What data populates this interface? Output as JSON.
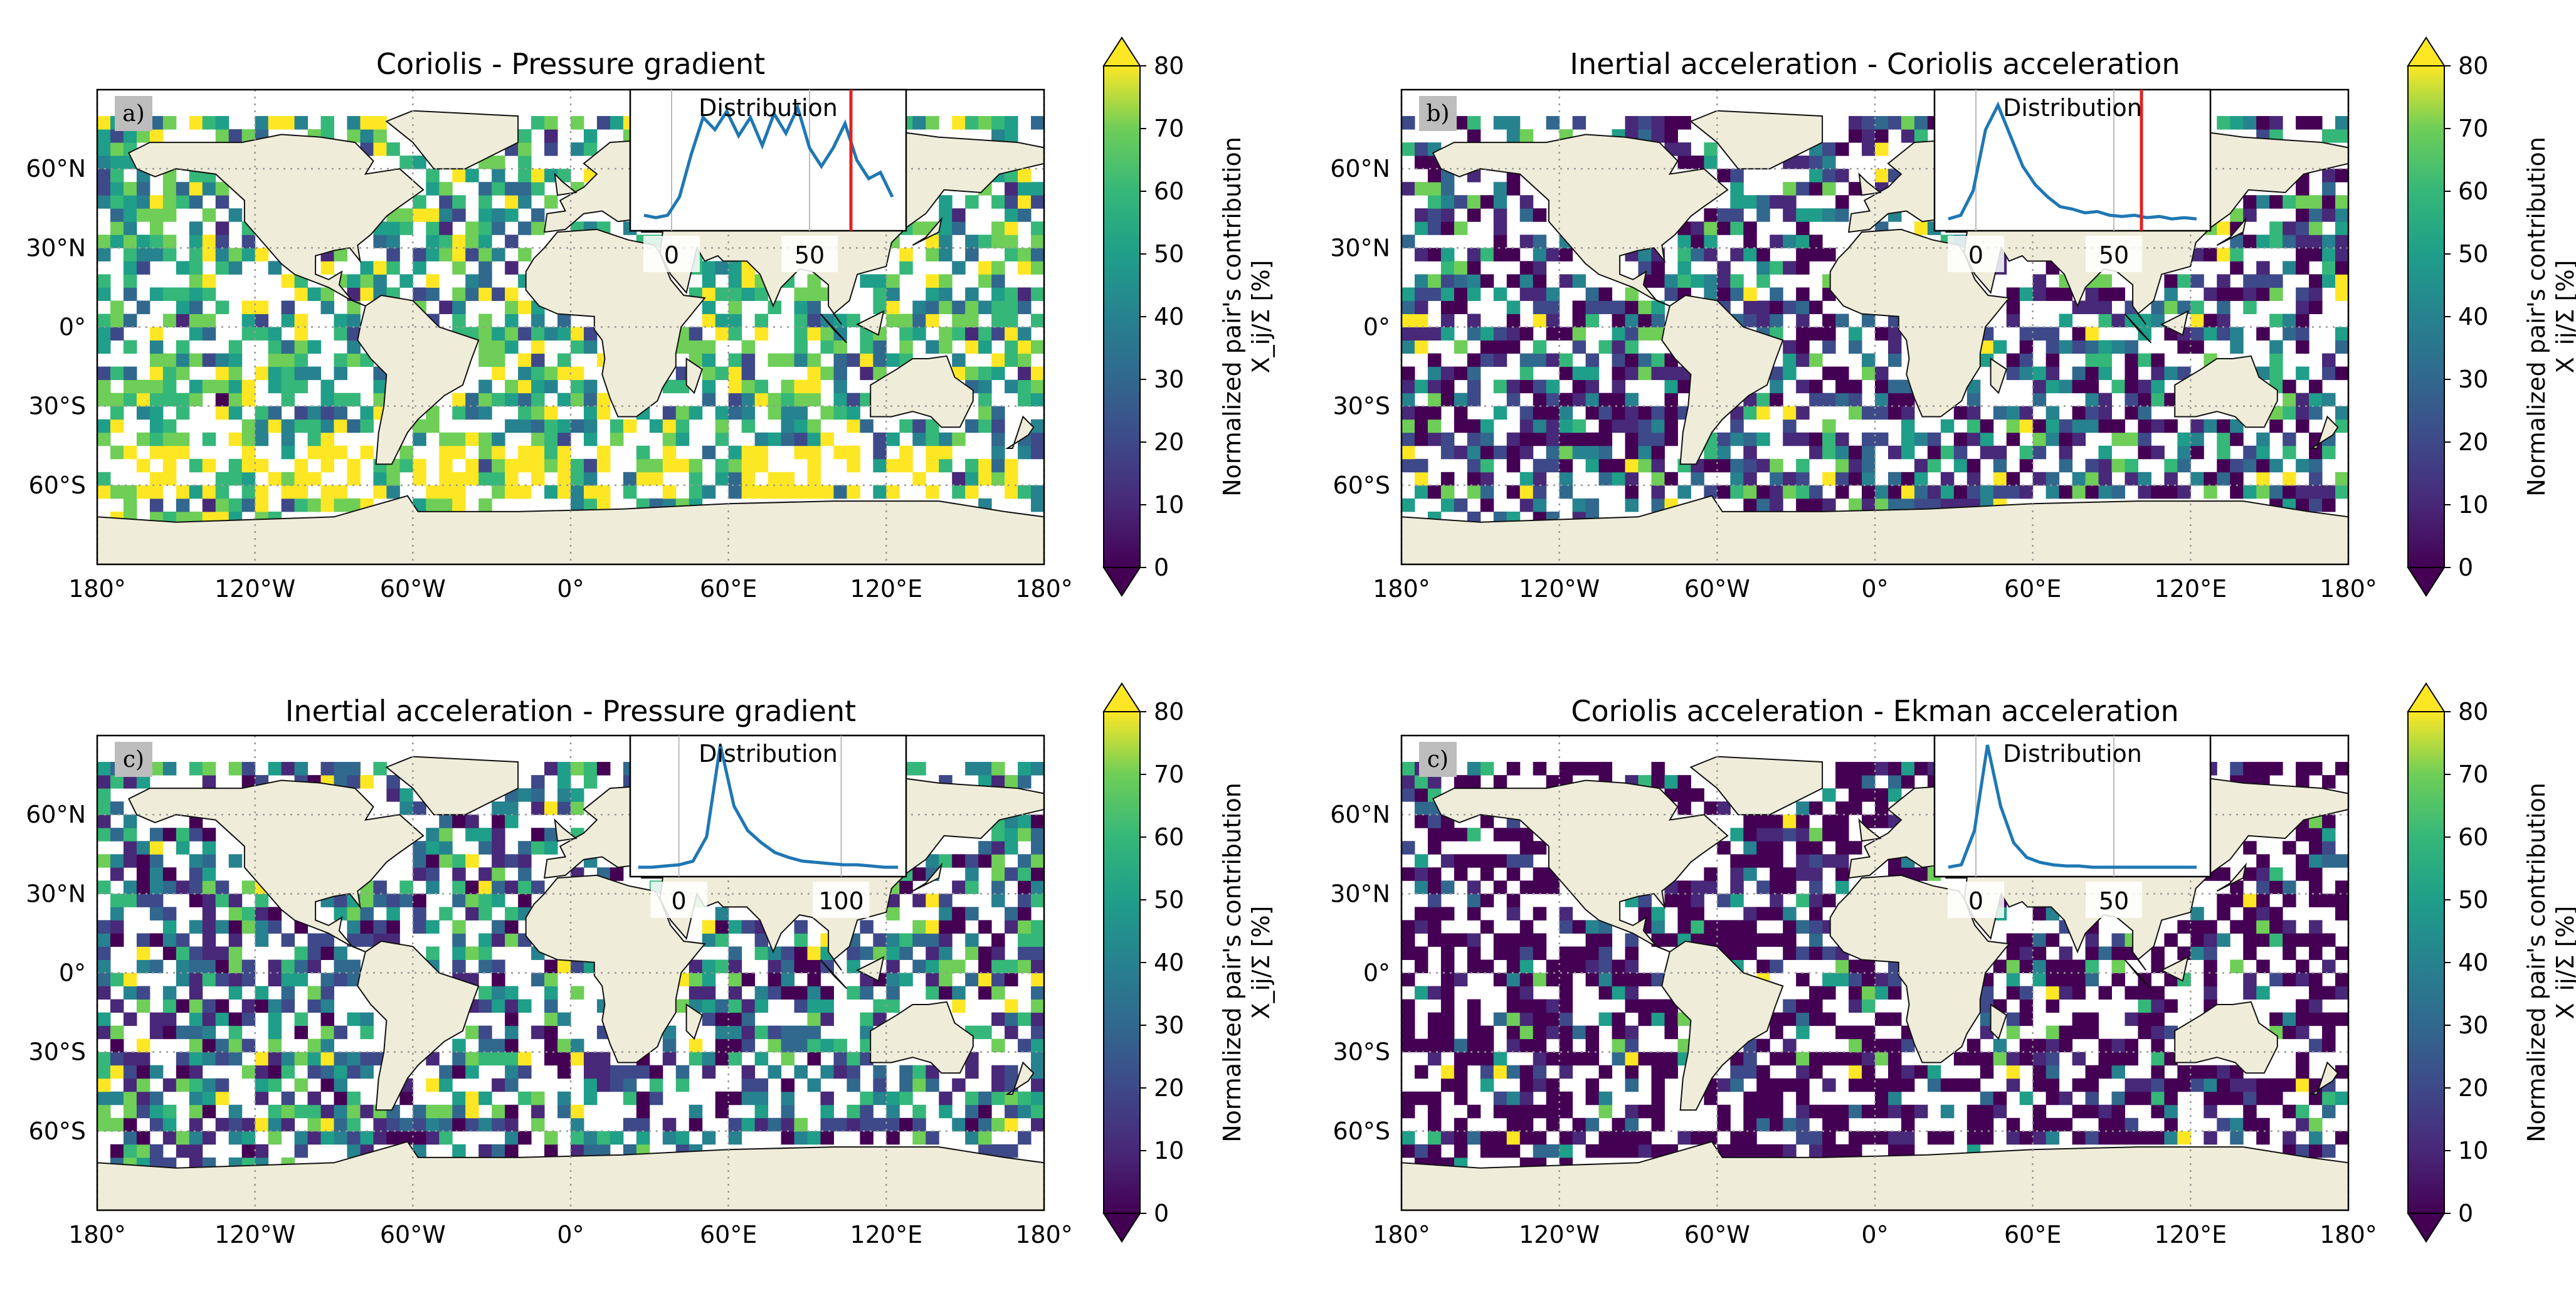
{
  "lon_ticks": [
    "180°",
    "120°W",
    "60°W",
    "0°",
    "60°E",
    "120°E",
    "180°"
  ],
  "lat_ticks": [
    "60°N",
    "30°N",
    "0°",
    "30°S",
    "60°S"
  ],
  "lat_values": [
    60,
    30,
    0,
    -30,
    -60
  ],
  "lon_values": [
    -180,
    -120,
    -60,
    0,
    60,
    120,
    180
  ],
  "colors": {
    "land": "#efedd9",
    "ocean": "#ffffff",
    "highlight": "#e3211c",
    "hist_line": "#1f77b4",
    "panel_label_bg": "#bdbdbd",
    "colormap": "viridis"
  },
  "colorbar": {
    "label_line1": "Normalized pair's contribution",
    "label_line2": "X_ij/Σ [%]",
    "ticks": [
      "0",
      "10",
      "20",
      "30",
      "40",
      "50",
      "60",
      "70",
      "80"
    ],
    "range": [
      0,
      80
    ],
    "extend": "both"
  },
  "panels": [
    {
      "id": "a",
      "title": "Coriolis - Pressure gradient",
      "label": "a)",
      "inset_title": "Distribution",
      "inset_ticks": [
        "0",
        "50"
      ],
      "inset_tick_values": [
        0,
        50
      ],
      "inset_xrange": [
        -15,
        85
      ],
      "inset_threshold": 65,
      "hist": [
        0.05,
        0.03,
        0.05,
        0.2,
        0.55,
        0.85,
        0.75,
        0.9,
        0.7,
        0.85,
        0.62,
        0.88,
        0.72,
        0.93,
        0.6,
        0.45,
        0.6,
        0.8,
        0.5,
        0.35,
        0.4,
        0.2
      ],
      "level": 2.2
    },
    {
      "id": "b",
      "title": "Inertial acceleration - Coriolis acceleration",
      "label": "b)",
      "inset_title": "Distribution",
      "inset_ticks": [
        "0",
        "50"
      ],
      "inset_tick_values": [
        0,
        50
      ],
      "inset_xrange": [
        -15,
        85
      ],
      "inset_threshold": 60,
      "hist": [
        0.02,
        0.05,
        0.25,
        0.75,
        0.95,
        0.7,
        0.45,
        0.3,
        0.2,
        0.12,
        0.1,
        0.07,
        0.08,
        0.05,
        0.04,
        0.05,
        0.03,
        0.04,
        0.02,
        0.03,
        0.02
      ],
      "level": 0.45
    },
    {
      "id": "c",
      "title": "Inertial acceleration - Pressure gradient",
      "label": "c)",
      "inset_title": "Distribution",
      "inset_ticks": [
        "0",
        "100"
      ],
      "inset_tick_values": [
        0,
        100
      ],
      "inset_xrange": [
        -30,
        140
      ],
      "inset_threshold": null,
      "hist": [
        0.0,
        0.0,
        0.01,
        0.02,
        0.05,
        0.25,
        1.0,
        0.5,
        0.3,
        0.2,
        0.12,
        0.08,
        0.05,
        0.04,
        0.03,
        0.02,
        0.02,
        0.01,
        0.0,
        0.0
      ],
      "level": 0.8
    },
    {
      "id": "d",
      "title": "Coriolis acceleration - Ekman acceleration",
      "label": "c)",
      "inset_title": "Distribution",
      "inset_ticks": [
        "0",
        "50"
      ],
      "inset_tick_values": [
        0,
        50
      ],
      "inset_xrange": [
        -15,
        85
      ],
      "inset_threshold": null,
      "hist": [
        0.0,
        0.02,
        0.3,
        1.0,
        0.5,
        0.2,
        0.08,
        0.04,
        0.02,
        0.01,
        0.01,
        0.0,
        0.0,
        0.0,
        0.0,
        0.0,
        0.0,
        0.0,
        0.0,
        0.0
      ],
      "level": 0.15
    }
  ]
}
